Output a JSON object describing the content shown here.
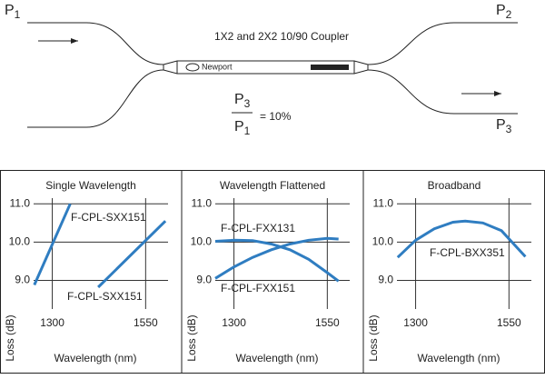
{
  "diagram": {
    "title": "1X2 and 2X2 10/90 Coupler",
    "logo": "Newport",
    "ports": [
      {
        "symbol": "P",
        "index": "1"
      },
      {
        "symbol": "P",
        "index": "2"
      },
      {
        "symbol": "P",
        "index": "3"
      }
    ],
    "formula": {
      "numerator": {
        "symbol": "P",
        "index": "3"
      },
      "denominator": {
        "symbol": "P",
        "index": "1"
      },
      "result": "= 10%"
    }
  },
  "chart_data": [
    {
      "type": "line",
      "title": "Single Wavelength",
      "x_label": "Wavelength (nm)",
      "y_label": "Loss (dB)",
      "xlim": [
        1250,
        1610
      ],
      "ylim": [
        8.25,
        11.15
      ],
      "xticks": [
        1300,
        1550
      ],
      "yticks": [
        {
          "value": 11,
          "label": "11.0"
        },
        {
          "value": 10,
          "label": "10.0"
        },
        {
          "value": 9,
          "label": "9.0"
        }
      ],
      "grid": true,
      "series": [
        {
          "name": "F-CPL-SXX151",
          "color": "#2f7dc1",
          "x": [
            1252,
            1348
          ],
          "values": [
            8.88,
            11.0
          ]
        },
        {
          "name": "F-CPL-SXX151",
          "color": "#2f7dc1",
          "x": [
            1423,
            1603
          ],
          "values": [
            8.82,
            10.55
          ]
        }
      ]
    },
    {
      "type": "line",
      "title": "Wavelength Flattened",
      "x_label": "Wavelength (nm)",
      "y_label": "Loss (dB)",
      "xlim": [
        1250,
        1610
      ],
      "ylim": [
        8.25,
        11.15
      ],
      "xticks": [
        1300,
        1550
      ],
      "yticks": [
        {
          "value": 11,
          "label": "11.0"
        },
        {
          "value": 10,
          "label": "10.0"
        },
        {
          "value": 9,
          "label": "9.0"
        }
      ],
      "grid": true,
      "series": [
        {
          "name": "F-CPL-FXX131",
          "color": "#2f7dc1",
          "x": [
            1250,
            1300,
            1350,
            1400,
            1450,
            1500,
            1550,
            1580
          ],
          "values": [
            10.02,
            10.05,
            10.04,
            9.95,
            9.8,
            9.55,
            9.2,
            8.98
          ]
        },
        {
          "name": "F-CPL-FXX151",
          "color": "#2f7dc1",
          "x": [
            1250,
            1300,
            1350,
            1400,
            1450,
            1500,
            1550,
            1580
          ],
          "values": [
            9.05,
            9.35,
            9.6,
            9.8,
            9.95,
            10.05,
            10.1,
            10.08
          ]
        }
      ]
    },
    {
      "type": "line",
      "title": "Broadband",
      "x_label": "Wavelength (nm)",
      "y_label": "Loss (dB)",
      "xlim": [
        1250,
        1610
      ],
      "ylim": [
        8.25,
        11.15
      ],
      "xticks": [
        1300,
        1550
      ],
      "yticks": [
        {
          "value": 11,
          "label": "11.0"
        },
        {
          "value": 10,
          "label": "10.0"
        },
        {
          "value": 9,
          "label": "9.0"
        }
      ],
      "grid": true,
      "series": [
        {
          "name": "F-CPL-BXX351",
          "color": "#2f7dc1",
          "x": [
            1252,
            1300,
            1350,
            1400,
            1433,
            1480,
            1530,
            1594
          ],
          "values": [
            9.6,
            10.05,
            10.35,
            10.52,
            10.55,
            10.5,
            10.3,
            9.62
          ]
        }
      ]
    }
  ]
}
